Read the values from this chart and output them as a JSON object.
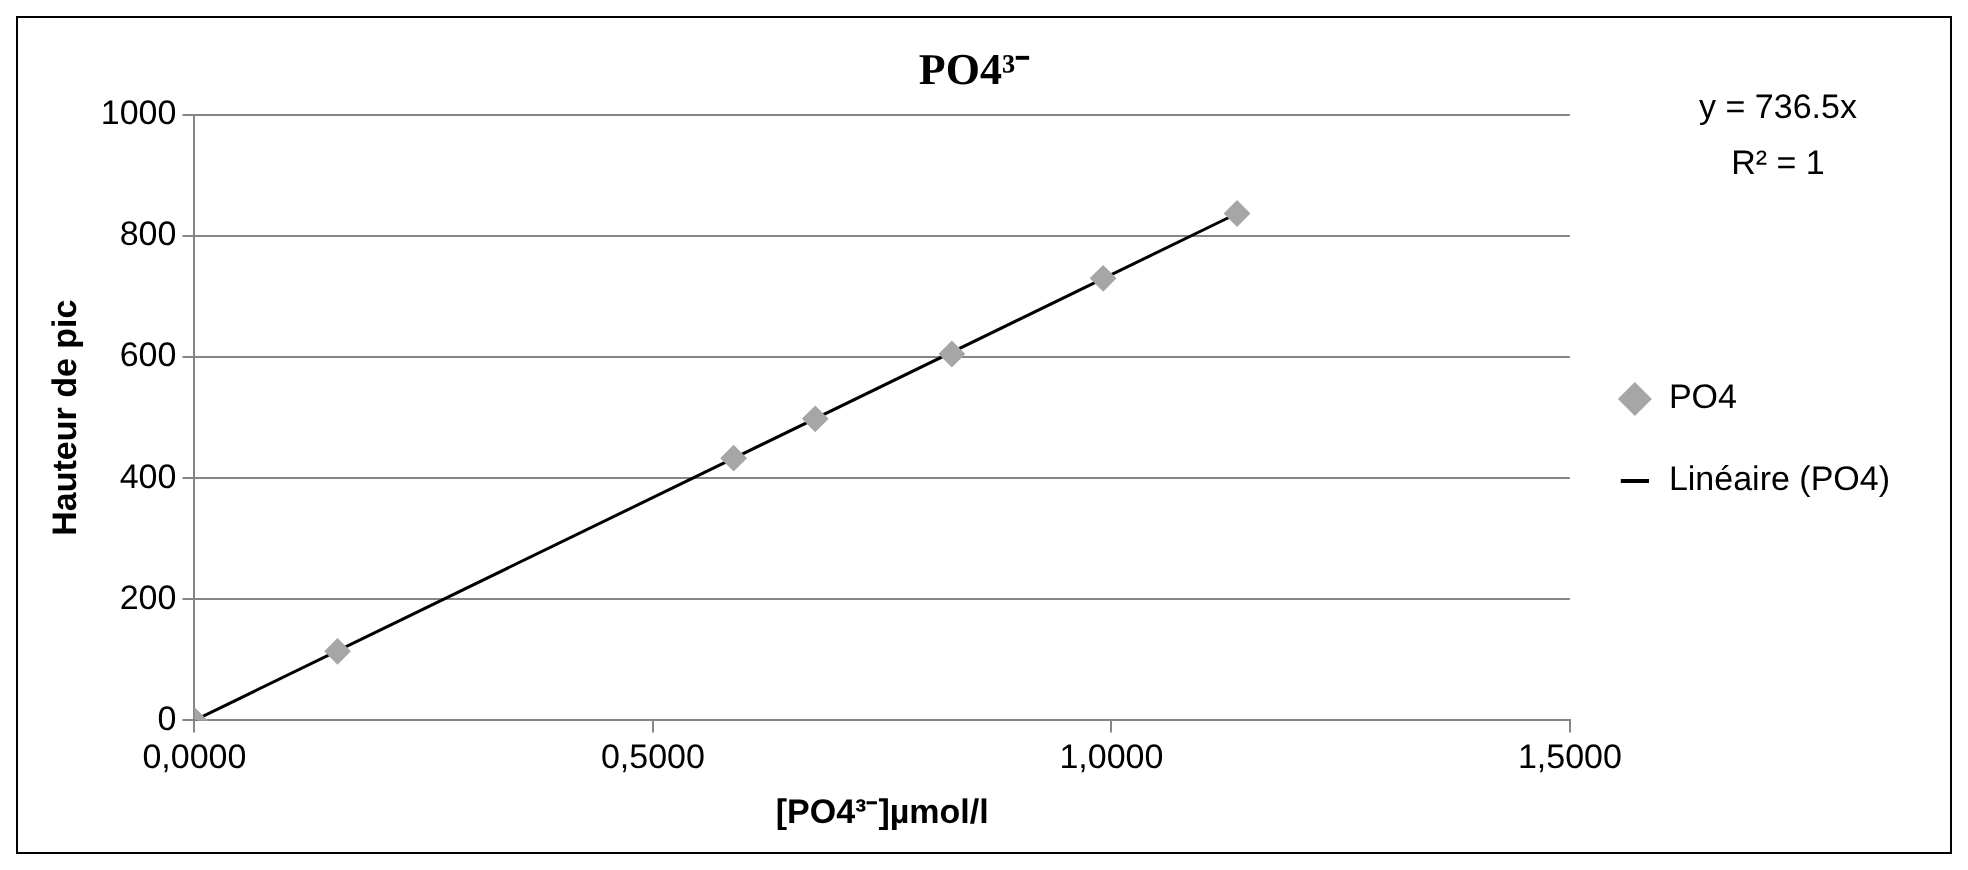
{
  "chart_data": {
    "type": "scatter",
    "title": "PO4³⁻",
    "xlabel": "[PO4³⁻]µmol/l",
    "ylabel": "Hauteur de pic",
    "x": [
      0,
      0.156,
      0.588,
      0.677,
      0.826,
      0.991,
      1.137
    ],
    "series": [
      {
        "name": "PO4",
        "color": "#a6a6a6",
        "marker": "diamond",
        "values": [
          0,
          114,
          433,
          498,
          605,
          730,
          837
        ]
      },
      {
        "name": "Linéaire (PO4)",
        "type": "line",
        "color": "#000000",
        "x": [
          0,
          1.137
        ],
        "values": [
          0,
          837
        ]
      }
    ],
    "annotations": [
      "y = 736.5x",
      "R² = 1"
    ],
    "xlim": [
      0,
      1.5
    ],
    "xticks": [
      {
        "value": 0,
        "label": "0,0000"
      },
      {
        "value": 0.5,
        "label": "0,5000"
      },
      {
        "value": 1,
        "label": "1,0000"
      },
      {
        "value": 1.5,
        "label": "1,5000"
      }
    ],
    "ylim": [
      0,
      1000
    ],
    "yticks": [
      0,
      200,
      400,
      600,
      800,
      1000
    ],
    "grid": "y",
    "legend": "right"
  }
}
